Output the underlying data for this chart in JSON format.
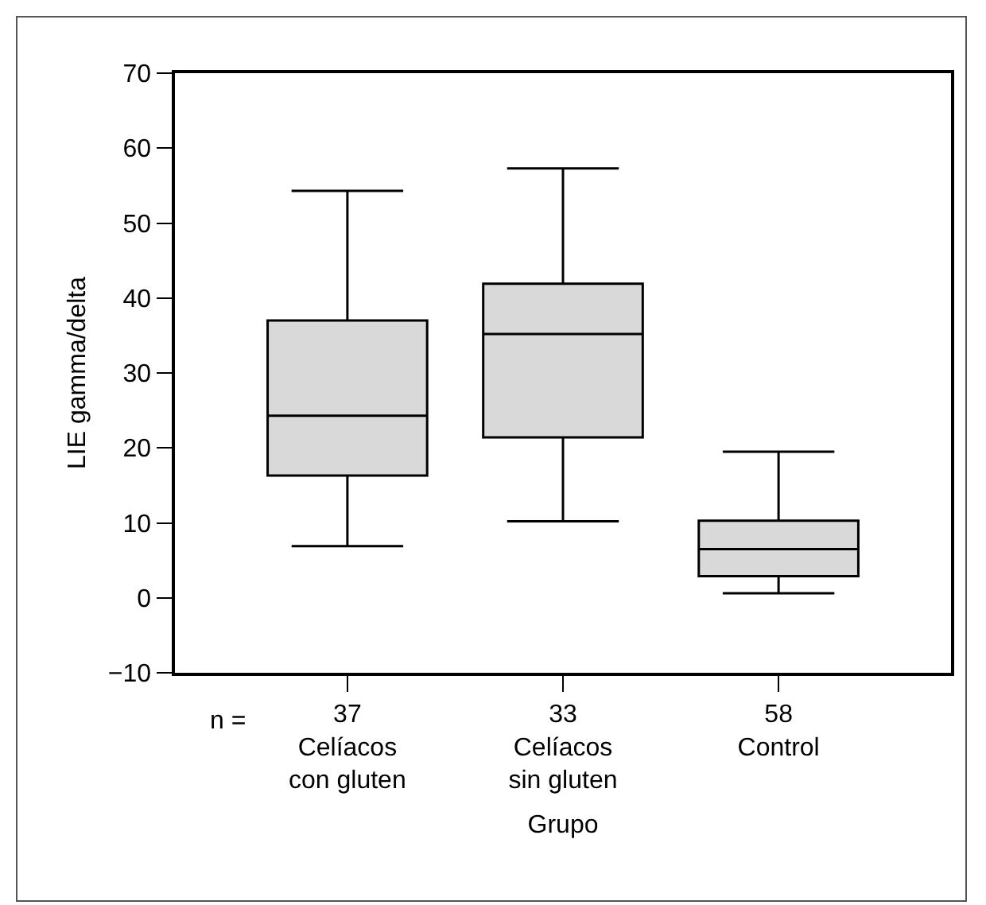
{
  "chart_data": {
    "type": "box",
    "categories": [
      "37\nCelíacos\ncon gluten",
      "33\nCelíacos\nsin gluten",
      "58\nControl"
    ],
    "boxes": [
      {
        "low": 6.9,
        "q1": 16.3,
        "median": 24.3,
        "q3": 37.0,
        "high": 54.3
      },
      {
        "low": 10.2,
        "q1": 21.4,
        "median": 35.2,
        "q3": 41.9,
        "high": 57.3
      },
      {
        "low": 0.6,
        "q1": 2.9,
        "median": 6.5,
        "q3": 10.3,
        "high": 19.5
      }
    ],
    "color": "#d9d9d9",
    "xlabel": "Grupo",
    "ylabel": "LIE gamma/delta",
    "ylim": [
      -10,
      70
    ],
    "yticks": [
      {
        "value": -10,
        "label": "−10"
      },
      0,
      10,
      20,
      30,
      40,
      50,
      60,
      70
    ],
    "annotations": [
      "n ="
    ],
    "grid": false,
    "legend": false
  }
}
